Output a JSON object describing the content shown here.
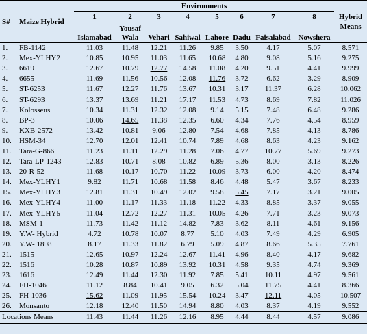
{
  "table": {
    "header": {
      "sn": "S#",
      "hybrid": "Maize Hybrid",
      "group": "Environments",
      "means": "Hybrid Means",
      "numbers": [
        "1",
        "2",
        "3",
        "4",
        "5",
        "6",
        "7",
        "8"
      ],
      "locations": [
        "Islamabad",
        "Yousaf Wala",
        "Vehari",
        "Sahiwal",
        "Lahore",
        "Dadu",
        "Faisalabad",
        "Nowshera"
      ]
    },
    "rows": [
      {
        "sn": "1.",
        "hybrid": "FB-1142",
        "cells": [
          "11.03",
          "11.48",
          "12.21",
          "11.26",
          "9.85",
          "3.50",
          "4.17",
          "5.07",
          "8.571"
        ]
      },
      {
        "sn": "2.",
        "hybrid": "Mex-YLHY2",
        "cells": [
          "10.85",
          "10.95",
          "11.03",
          "11.65",
          "10.68",
          "4.80",
          "9.08",
          "5.16",
          "9.275"
        ]
      },
      {
        "sn": "3.",
        "hybrid": "6619",
        "cells": [
          "12.67",
          "10.79",
          {
            "text": "12.77",
            "underline": true
          },
          "14.58",
          "11.08",
          "4.20",
          "9.51",
          "4.41",
          "9.999"
        ]
      },
      {
        "sn": "4.",
        "hybrid": "6655",
        "cells": [
          "11.69",
          "11.56",
          "10.56",
          "12.08",
          {
            "text": "11.76",
            "underline": true
          },
          "3.72",
          "6.62",
          "3.29",
          "8.909"
        ]
      },
      {
        "sn": "5.",
        "hybrid": "ST-6253",
        "cells": [
          "11.67",
          "12.27",
          "11.76",
          "13.67",
          "10.31",
          "3.17",
          "11.37",
          "6.28",
          "10.062"
        ]
      },
      {
        "sn": "6.",
        "hybrid": "ST-6293",
        "cells": [
          "13.37",
          "13.69",
          "11.21",
          {
            "text": "17.17",
            "underline": true
          },
          "11.53",
          "4.73",
          "8.69",
          {
            "text": "7.82",
            "underline": true
          },
          {
            "text": "11.026",
            "underline": true
          }
        ]
      },
      {
        "sn": "7.",
        "hybrid": "Kolosseus",
        "cells": [
          "10.34",
          "11.31",
          "12.32",
          "12.08",
          "9.14",
          "5.15",
          "7.48",
          "6.48",
          "9.286"
        ]
      },
      {
        "sn": "8.",
        "hybrid": "BP-3",
        "cells": [
          "10.06",
          {
            "text": "14.65",
            "underline": true
          },
          "11.38",
          "12.35",
          "6.60",
          "4.34",
          "7.76",
          "4.54",
          "8.959"
        ]
      },
      {
        "sn": "9.",
        "hybrid": "KXB-2572",
        "cells": [
          "13.42",
          "10.81",
          "9.06",
          "12.80",
          "7.54",
          "4.68",
          "7.85",
          "4.13",
          "8.786"
        ]
      },
      {
        "sn": "10.",
        "hybrid": "HSM-34",
        "cells": [
          "12.70",
          "12.01",
          "12.41",
          "10.74",
          "7.89",
          "4.68",
          "8.63",
          "4.23",
          "9.162"
        ]
      },
      {
        "sn": "11.",
        "hybrid": "Tara-G-866",
        "cells": [
          "11.23",
          "11.11",
          "12.29",
          "11.28",
          "7.06",
          "4.77",
          "10.77",
          "5.69",
          "9.273"
        ]
      },
      {
        "sn": "12.",
        "hybrid": "Tara-LP-1243",
        "cells": [
          "12.83",
          "10.71",
          "8.08",
          "10.82",
          "6.89",
          "5.36",
          "8.00",
          "3.13",
          "8.226"
        ]
      },
      {
        "sn": "13.",
        "hybrid": "20-R-52",
        "cells": [
          "11.68",
          "10.17",
          "10.70",
          "11.22",
          "10.09",
          "3.73",
          "6.00",
          "4.20",
          "8.474"
        ]
      },
      {
        "sn": "14.",
        "hybrid": "Mex-YLHY1",
        "cells": [
          "9.82",
          "11.71",
          "10.68",
          "11.58",
          "8.46",
          "4.48",
          "5.47",
          "3.67",
          "8.233"
        ]
      },
      {
        "sn": "15.",
        "hybrid": "Mex-YLHY3",
        "cells": [
          "12.81",
          "11.31",
          "10.49",
          "12.02",
          "9.58",
          {
            "text": "5.45",
            "underline": true
          },
          "7.17",
          "3.21",
          "9.005"
        ]
      },
      {
        "sn": "16.",
        "hybrid": "Mex-YLHY4",
        "cells": [
          "11.00",
          "11.17",
          "11.33",
          "11.18",
          "11.22",
          "4.33",
          "8.85",
          "3.37",
          "9.055"
        ]
      },
      {
        "sn": "17.",
        "hybrid": "Mex-YLHY5",
        "cells": [
          "11.04",
          "12.72",
          "12.27",
          "11.31",
          "10.05",
          "4.26",
          "7.71",
          "3.23",
          "9.073"
        ]
      },
      {
        "sn": "18.",
        "hybrid": "MSM-1",
        "cells": [
          "11.73",
          "11.42",
          "11.12",
          "14.82",
          "7.83",
          "3.62",
          "8.11",
          "4.61",
          "9.156"
        ]
      },
      {
        "sn": "19.",
        "hybrid": "Y.W- Hybrid",
        "cells": [
          "4.72",
          "10.78",
          "10.07",
          "8.77",
          "5.10",
          "4.03",
          "7.49",
          "4.29",
          "6.905"
        ]
      },
      {
        "sn": "20.",
        "hybrid": "Y.W- 1898",
        "cells": [
          "8.17",
          "11.33",
          "11.82",
          "6.79",
          "5.09",
          "4.87",
          "8.66",
          "5.35",
          "7.761"
        ]
      },
      {
        "sn": "21.",
        "hybrid": "1515",
        "cells": [
          "12.65",
          "10.97",
          "12.24",
          "12.67",
          "11.41",
          "4.96",
          "8.40",
          "4.17",
          "9.682"
        ]
      },
      {
        "sn": "22.",
        "hybrid": "1516",
        "cells": [
          "10.28",
          "10.87",
          "10.89",
          "13.92",
          "10.31",
          "4.58",
          "9.35",
          "4.74",
          "9.369"
        ]
      },
      {
        "sn": "23.",
        "hybrid": "1616",
        "cells": [
          "12.49",
          "11.44",
          "12.30",
          "11.92",
          "7.85",
          "5.41",
          "10.11",
          "4.97",
          "9.561"
        ]
      },
      {
        "sn": "24.",
        "hybrid": "FH-1046",
        "cells": [
          "11.12",
          "8.84",
          "10.41",
          "9.05",
          "6.32",
          "5.04",
          "11.75",
          "4.41",
          "8.366"
        ]
      },
      {
        "sn": "25.",
        "hybrid": "FH-1036",
        "cells": [
          {
            "text": "15.62",
            "underline": true
          },
          "11.09",
          "11.95",
          "15.54",
          "10.24",
          "3.47",
          {
            "text": "12.11",
            "underline": true
          },
          "4.05",
          "10.507"
        ]
      },
      {
        "sn": "26.",
        "hybrid": "Monsanto",
        "cells": [
          "12.18",
          "12.40",
          "11.50",
          "14.94",
          "8.80",
          "4.03",
          "8.37",
          "4.19",
          "9.552"
        ]
      }
    ],
    "footer": {
      "label": "Locations Means",
      "cells": [
        "11.43",
        "11.44",
        "11.26",
        "12.16",
        "8.95",
        "4.44",
        "8.44",
        "4.57",
        "9.086"
      ]
    }
  }
}
